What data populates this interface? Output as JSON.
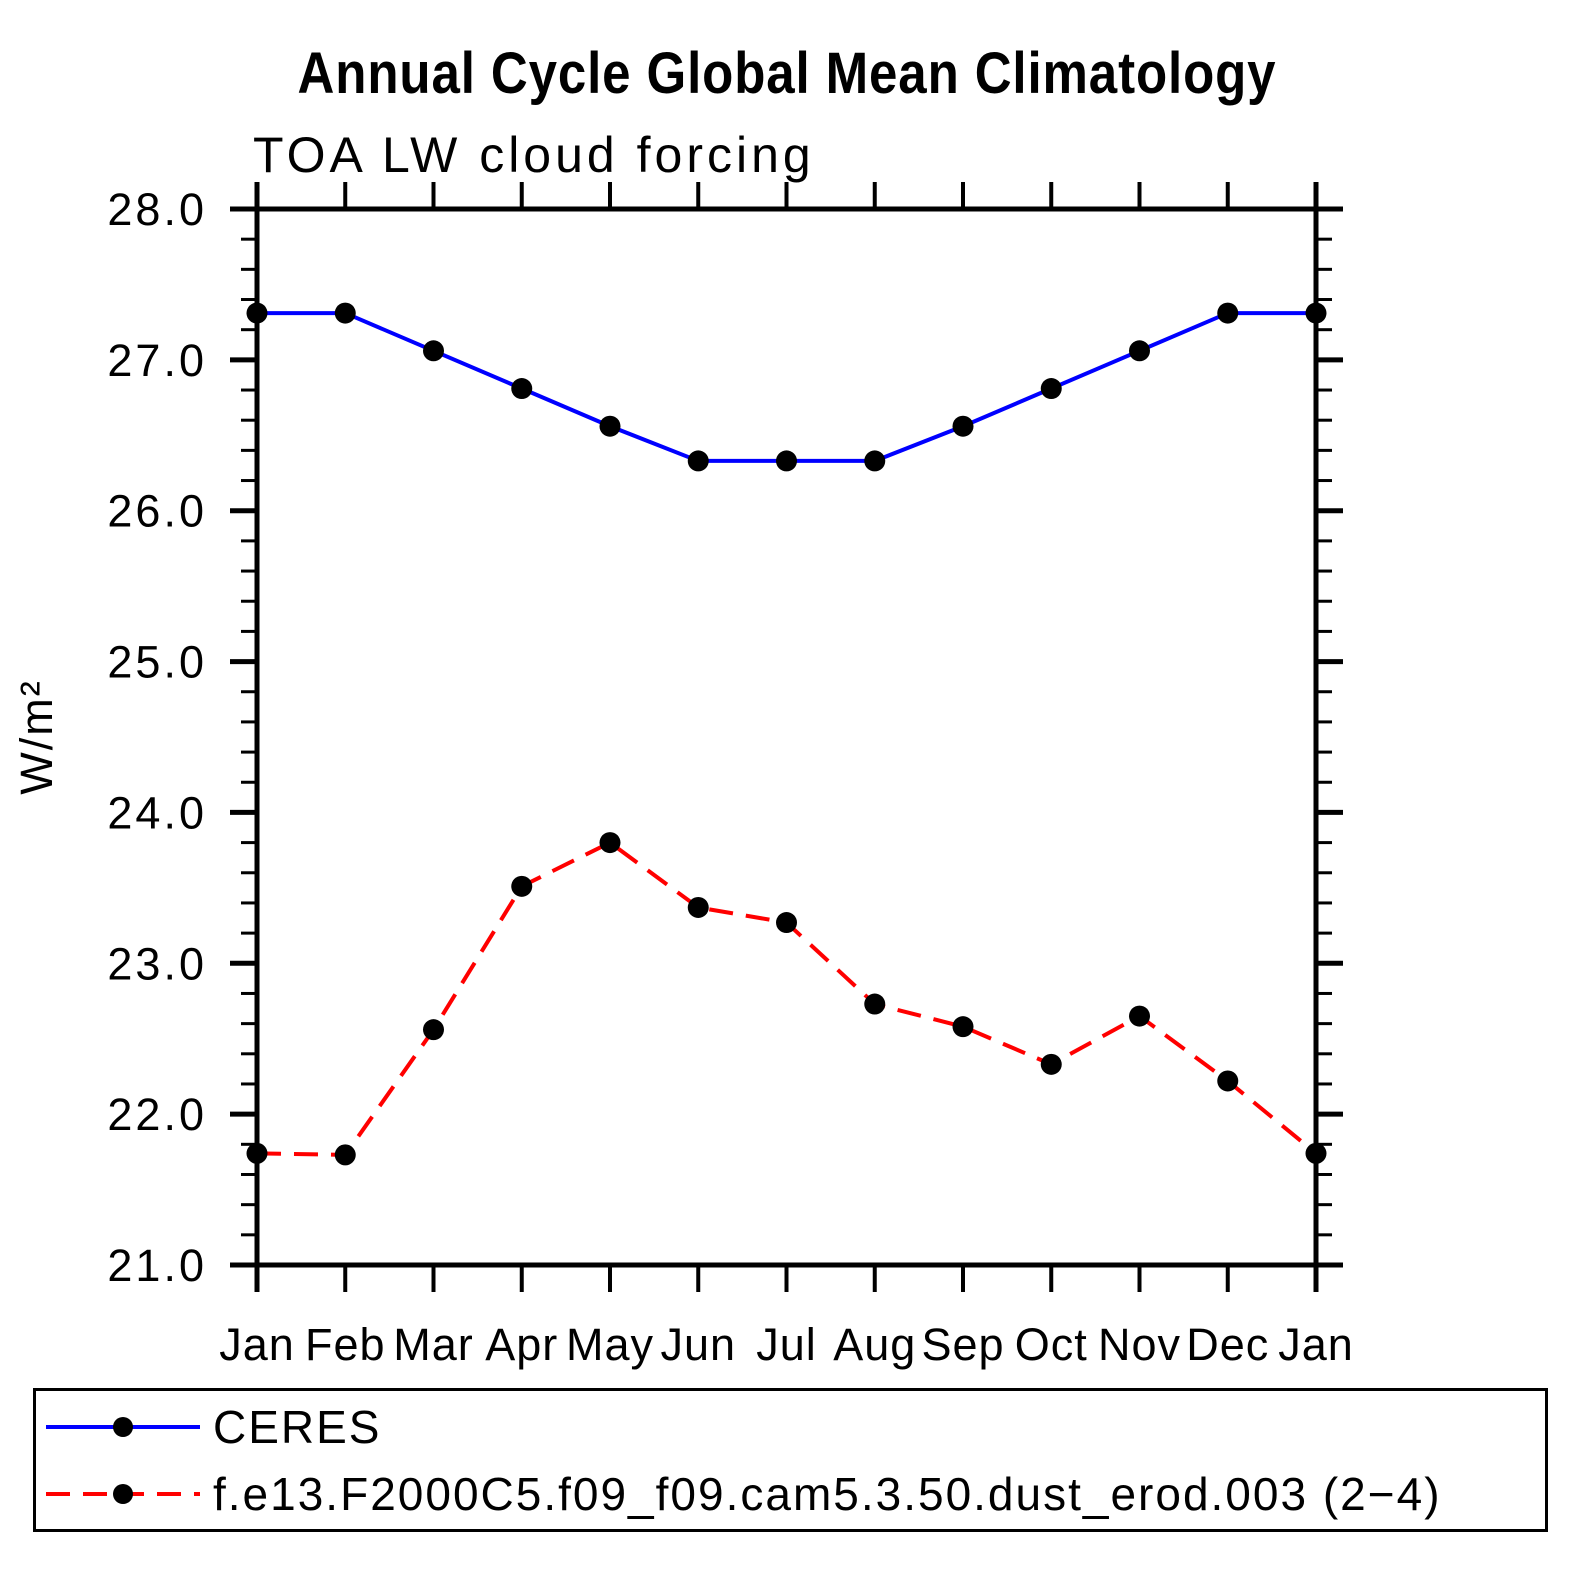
{
  "page": {
    "title": "Annual Cycle Global Mean Climatology",
    "subtitle": "TOA LW cloud forcing"
  },
  "chart_data": {
    "type": "line",
    "title": "Annual Cycle Global Mean Climatology",
    "subtitle": "TOA LW cloud forcing",
    "xlabel": "",
    "ylabel": "W/m²",
    "x_categories": [
      "Jan",
      "Feb",
      "Mar",
      "Apr",
      "May",
      "Jun",
      "Jul",
      "Aug",
      "Sep",
      "Oct",
      "Nov",
      "Dec",
      "Jan"
    ],
    "ylim": [
      21.0,
      28.0
    ],
    "ytick_major_step": 1.0,
    "ytick_minor_step": 0.2,
    "ytick_labels": [
      "21.0",
      "22.0",
      "23.0",
      "24.0",
      "25.0",
      "26.0",
      "27.0",
      "28.0"
    ],
    "grid": false,
    "legend_position": "bottom-box",
    "axis_color": "#000000",
    "series": [
      {
        "name": "CERES",
        "color": "#0000ff",
        "line_style": "solid",
        "marker": "filled-circle",
        "marker_color": "#000000",
        "values": [
          27.31,
          27.31,
          27.06,
          26.81,
          26.56,
          26.33,
          26.33,
          26.33,
          26.56,
          26.81,
          27.06,
          27.31,
          27.31
        ]
      },
      {
        "name": "f.e13.F2000C5.f09_f09.cam5.3.50.dust_erod.003 (2−4)",
        "color": "#ff0000",
        "line_style": "dashed",
        "marker": "filled-circle",
        "marker_color": "#000000",
        "values": [
          21.74,
          21.73,
          22.56,
          23.51,
          23.8,
          23.37,
          23.27,
          22.73,
          22.58,
          22.33,
          22.65,
          22.22,
          21.74
        ]
      }
    ]
  }
}
